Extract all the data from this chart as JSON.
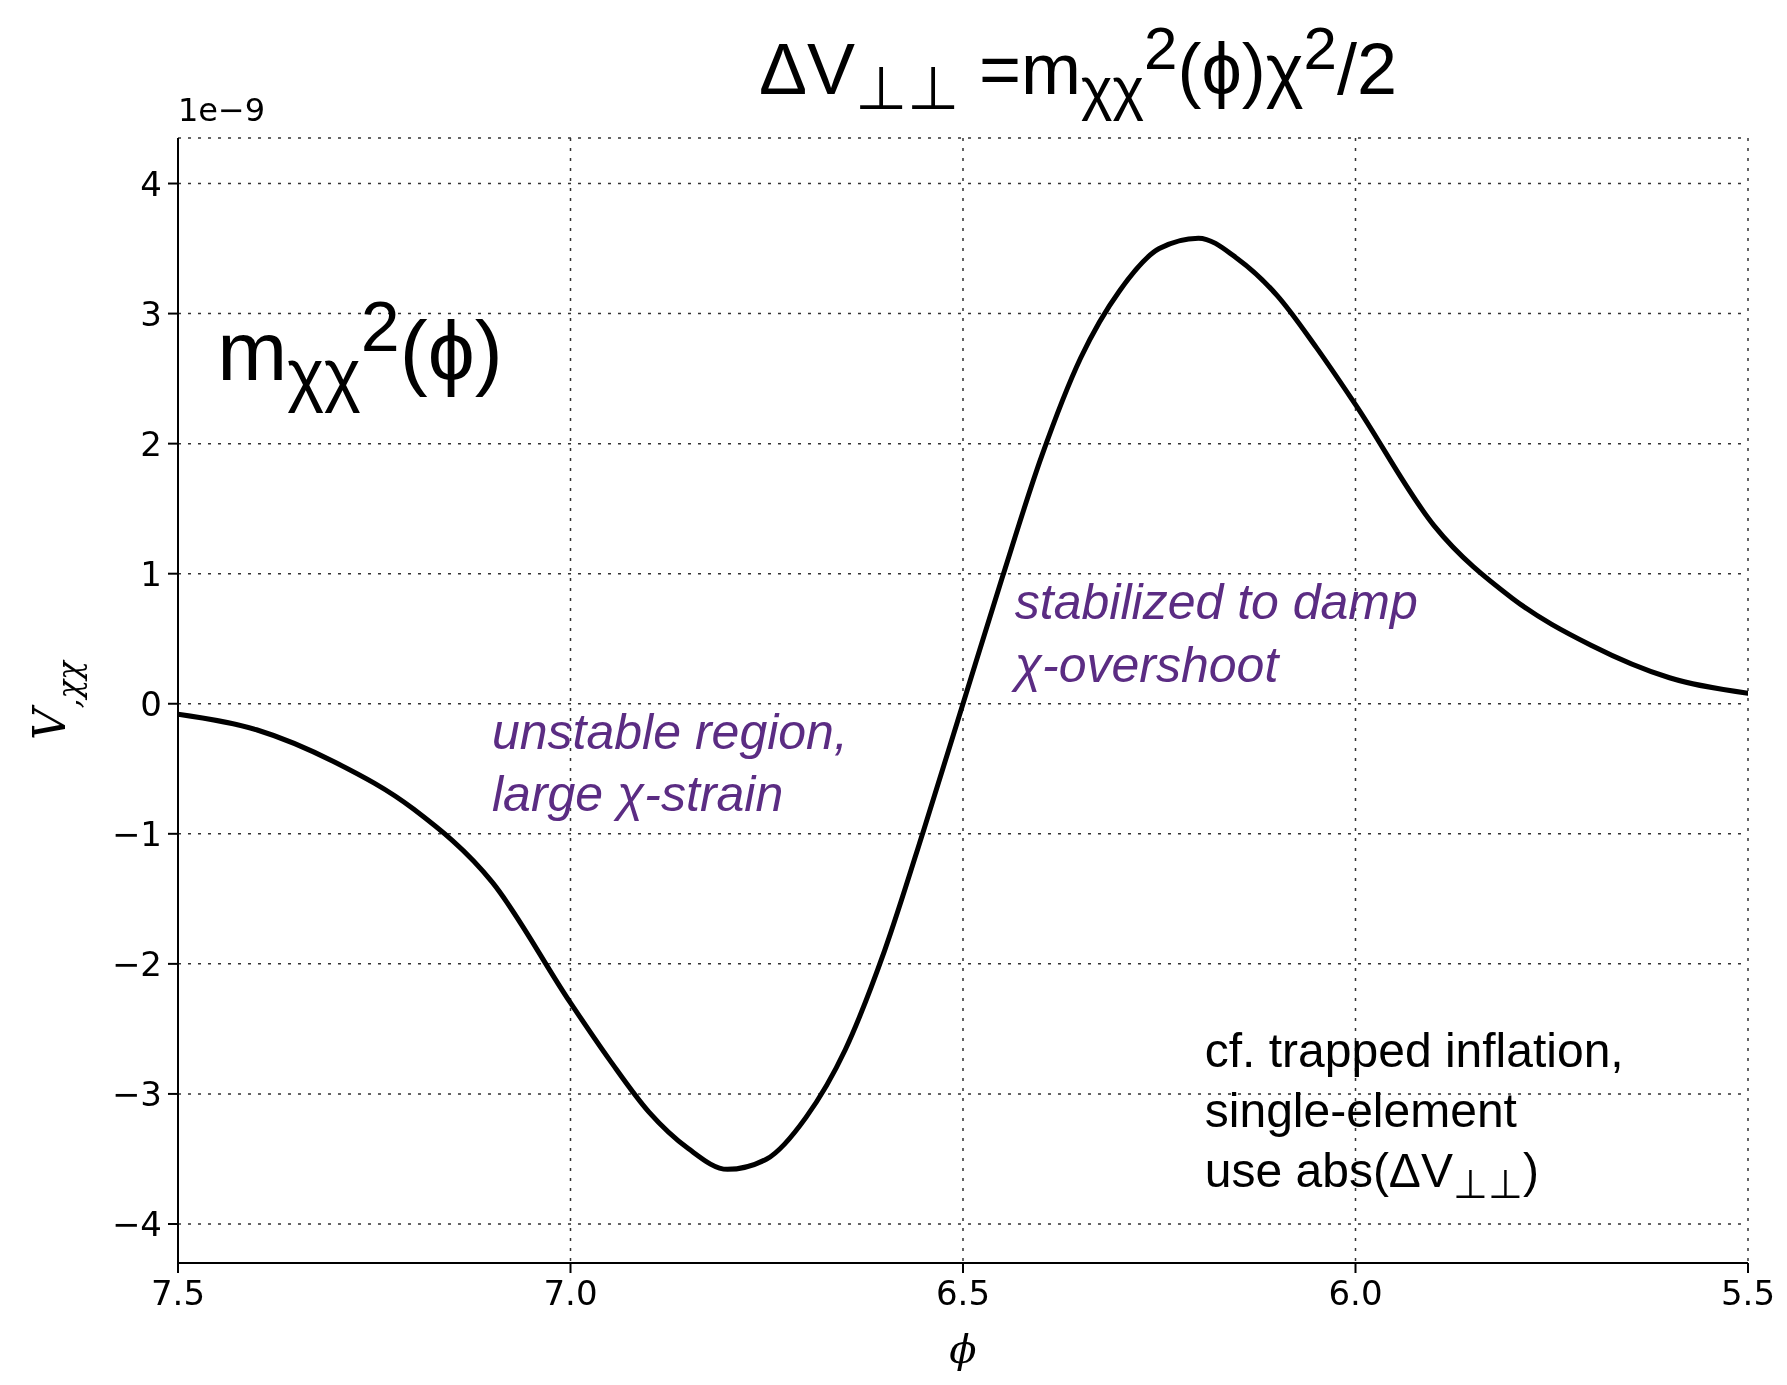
{
  "chart_data": {
    "type": "line",
    "title": "ΔV$_{⊥⊥}$ =m$_{χχ}$$^{2}$(ϕ)χ$^{2}$/2",
    "xlabel": "ϕ",
    "ylabel": "V$_{,χχ}$",
    "x": [
      7.5,
      7.4,
      7.3,
      7.2,
      7.1,
      7.0,
      6.95,
      6.9,
      6.85,
      6.8,
      6.75,
      6.7,
      6.65,
      6.6,
      6.55,
      6.5,
      6.45,
      6.4,
      6.35,
      6.3,
      6.25,
      6.2,
      6.15,
      6.1,
      6.05,
      6.0,
      5.9,
      5.8,
      5.7,
      5.6,
      5.5
    ],
    "series": [
      {
        "color": "#000000",
        "values": [
          -0.08,
          -0.2,
          -0.45,
          -0.81,
          -1.37,
          -2.3,
          -2.74,
          -3.14,
          -3.42,
          -3.58,
          -3.5,
          -3.18,
          -2.66,
          -1.9,
          -0.97,
          0,
          0.97,
          1.9,
          2.66,
          3.18,
          3.5,
          3.58,
          3.42,
          3.14,
          2.74,
          2.3,
          1.37,
          0.81,
          0.45,
          0.2,
          0.08
        ]
      }
    ],
    "xlim": [
      7.5,
      5.5
    ],
    "xticks": [
      7.5,
      {
        "value": 7,
        "label": "7.0"
      },
      6.5,
      {
        "value": 6,
        "label": "6.0"
      },
      5.5
    ],
    "ylim": [
      -4.3,
      4.35
    ],
    "yticks": [
      {
        "value": -4,
        "label": "−4"
      },
      {
        "value": -3,
        "label": "−3"
      },
      {
        "value": -2,
        "label": "−2"
      },
      {
        "value": -1,
        "label": "−1"
      },
      0,
      1,
      2,
      3,
      4
    ],
    "grid": true,
    "annotations": [
      "1e−9",
      "m$_{χχ}$$^{2}$(ϕ)",
      "unstable region,\nlarge χ-strain",
      "stabilized to damp\nχ-overshoot",
      "cf. trapped inflation,\nsingle-element\nuse abs(ΔV$_{⊥⊥}$)"
    ]
  }
}
